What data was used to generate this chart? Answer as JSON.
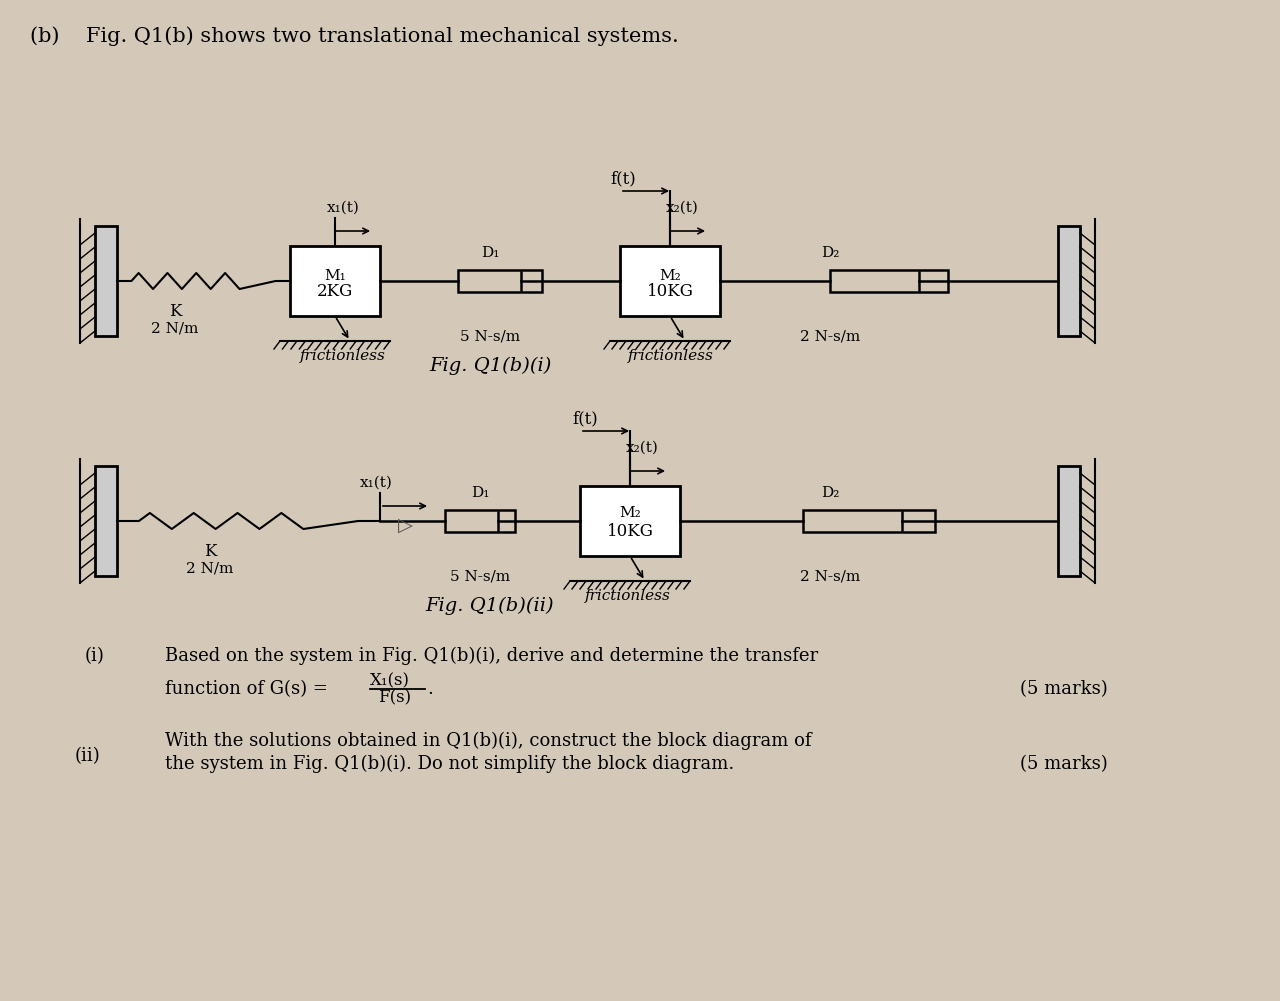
{
  "bg_color": "#d4c9b8",
  "title_text": "(b)    Fig. Q1(b) shows two translational mechanical systems.",
  "fig1_caption": "Fig. Q1(b)(i)",
  "fig2_caption": "Fig. Q1(b)(ii)",
  "question_i_label": "(i)",
  "question_i_text": "Based on the system in Fig. Q1(b)(i), derive and determine the transfer",
  "question_i_text2": "function of G(s) =",
  "question_i_fraction_num": "X₁(s)",
  "question_i_fraction_den": "F(s)",
  "question_i_marks": "(5 marks)",
  "question_ii_label": "(ii)",
  "question_ii_text": "With the solutions obtained in Q1(b)(i), construct the block diagram of",
  "question_ii_text2": "the system in Fig. Q1(b)(i). Do not simplify the block diagram.",
  "question_ii_marks": "(5 marks)"
}
